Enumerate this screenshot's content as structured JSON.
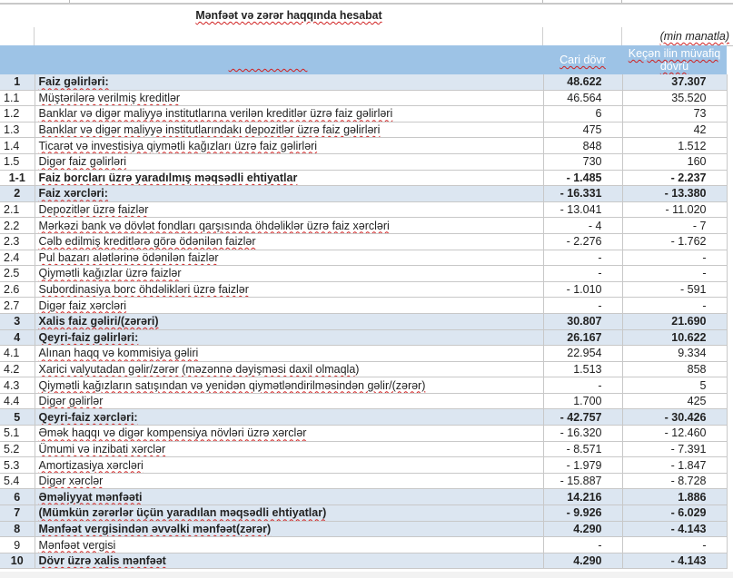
{
  "title": "Mənfəət və zərər haqqında hesabat",
  "unit": "(min manatla)",
  "header": {
    "col_current": "Cari dövr",
    "col_prev": "Keçən ilin müvafiq dövrü"
  },
  "colors": {
    "header_bg": "#9dc3e6",
    "highlight_row": "#dce6f1"
  },
  "rows": [
    {
      "no": "1",
      "label": "Faiz gəlirləri:",
      "cur": "48.622",
      "prev": "37.307",
      "bold": true,
      "hl": true
    },
    {
      "no": "1.1",
      "label": "Müştərilərə verilmiş kreditlər",
      "cur": "46.564",
      "prev": "35.520"
    },
    {
      "no": "1.2",
      "label": "Banklar və digər maliyyə institutlarına verilən kreditlər üzrə faiz gəlirləri",
      "cur": "6",
      "prev": "73"
    },
    {
      "no": "1.3",
      "label": "Banklar və digər maliyyə institutlarındakı depozitlər üzrə faiz gəlirləri",
      "cur": "475",
      "prev": "42"
    },
    {
      "no": "1.4",
      "label": "Ticarət və investisiya qiymətli kağızları üzrə faiz gəlirləri",
      "cur": "848",
      "prev": "1.512"
    },
    {
      "no": "1.5",
      "label": "Digər faiz gəlirləri",
      "cur": "730",
      "prev": "160"
    },
    {
      "no": "1-1",
      "label": "Faiz borcları üzrə yaradılmış məqsədli ehtiyatlar",
      "cur": "- 1.485",
      "prev": "- 2.237",
      "bold": true
    },
    {
      "no": "2",
      "label": "Faiz xərcləri:",
      "cur": "- 16.331",
      "prev": "- 13.380",
      "bold": true,
      "hl": true
    },
    {
      "no": "2.1",
      "label": "Depozitlər üzrə faizlər",
      "cur": "- 13.041",
      "prev": "- 11.020"
    },
    {
      "no": "2.2",
      "label": "Mərkəzi bank və dövlət fondları qarşısında öhdəliklər üzrə faiz xərcləri",
      "cur": "- 4",
      "prev": "- 7"
    },
    {
      "no": "2.3",
      "label": "Cəlb edilmiş kreditlərə görə ödənilən faizlər",
      "cur": "- 2.276",
      "prev": "- 1.762"
    },
    {
      "no": "2.4",
      "label": "Pul bazarı alətlərinə ödənilən faizlər",
      "cur": "-",
      "prev": "-"
    },
    {
      "no": "2.5",
      "label": "Qiymətli kağızlar üzrə faizlər",
      "cur": "-",
      "prev": "-"
    },
    {
      "no": "2.6",
      "label": "Subordinasiya borc öhdəlikləri üzrə faizlər",
      "cur": "- 1.010",
      "prev": "- 591"
    },
    {
      "no": "2.7",
      "label": "Digər faiz xərcləri",
      "cur": "-",
      "prev": "-"
    },
    {
      "no": "3",
      "label": "Xalis faiz gəliri/(zərəri)",
      "cur": "30.807",
      "prev": "21.690",
      "bold": true,
      "hl": true
    },
    {
      "no": "4",
      "label": "Qeyri-faiz gəlirləri:",
      "cur": "26.167",
      "prev": "10.622",
      "bold": true,
      "hl": true
    },
    {
      "no": "4.1",
      "label": "Alınan haqq və kommisiya gəliri",
      "cur": "22.954",
      "prev": "9.334"
    },
    {
      "no": "4.2",
      "label": "Xarici valyutadan gəlir/zərər (məzənnə dəyişməsi daxil olmaqla)",
      "cur": "1.513",
      "prev": "858"
    },
    {
      "no": "4.3",
      "label": "Qiymətli kağızların satışından və yenidən qiymətləndirilməsindən gəlir/(zərər)",
      "cur": "-",
      "prev": "5"
    },
    {
      "no": "4.4",
      "label": "Digər gəlirlər",
      "cur": "1.700",
      "prev": "425"
    },
    {
      "no": "5",
      "label": "Qeyri-faiz xərcləri:",
      "cur": "- 42.757",
      "prev": "- 30.426",
      "bold": true,
      "hl": true
    },
    {
      "no": "5.1",
      "label": "Əmək haqqı və digər kompensiya növləri üzrə xərclər",
      "cur": "- 16.320",
      "prev": "- 12.460"
    },
    {
      "no": "5.2",
      "label": "Ümumi və inzibati xərclər",
      "cur": "- 8.571",
      "prev": "- 7.391"
    },
    {
      "no": "5.3",
      "label": "Amortizasiya xərcləri",
      "cur": "- 1.979",
      "prev": "- 1.847"
    },
    {
      "no": "5.4",
      "label": "Digər xərclər",
      "cur": "- 15.887",
      "prev": "- 8.728"
    },
    {
      "no": "6",
      "label": "Əməliyyat mənfəəti",
      "cur": "14.216",
      "prev": "1.886",
      "bold": true,
      "hl": true
    },
    {
      "no": "7",
      "label": "(Mümkün zərərlər üçün yaradılan məqsədli ehtiyatlar)",
      "cur": "- 9.926",
      "prev": "- 6.029",
      "bold": true,
      "hl": true
    },
    {
      "no": "8",
      "label": "Mənfəət vergisindən əvvəlki mənfəət(zərər)",
      "cur": "4.290",
      "prev": "- 4.143",
      "bold": true,
      "hl": true
    },
    {
      "no": "9",
      "label": "Mənfəət vergisi",
      "cur": "-",
      "prev": "-",
      "center": true
    },
    {
      "no": "10",
      "label": "Dövr üzrə xalis mənfəət",
      "cur": "4.290",
      "prev": "- 4.143",
      "bold": true,
      "hl": true
    }
  ]
}
